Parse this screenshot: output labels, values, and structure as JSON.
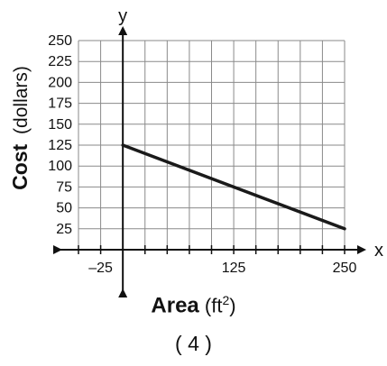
{
  "chart_data": {
    "type": "line",
    "title": "",
    "xlabel": "Area",
    "xlabel_unit": "(ft",
    "xlabel_unit_exp": "2",
    "xlabel_unit_close": ")",
    "ylabel": "Cost",
    "ylabel_unit": "(dollars)",
    "x_axis_letter": "x",
    "y_axis_letter": "y",
    "xlim": [
      -50,
      250
    ],
    "ylim": [
      0,
      250
    ],
    "x_grid_step": 25,
    "y_grid_step": 25,
    "grid": true,
    "x_ticks": [
      -25,
      125,
      250
    ],
    "x_tick_labels": [
      "–25",
      "125",
      "250"
    ],
    "y_ticks": [
      25,
      50,
      75,
      100,
      125,
      150,
      175,
      200,
      225,
      250
    ],
    "y_tick_labels": [
      "25",
      "50",
      "75",
      "100",
      "125",
      "150",
      "175",
      "200",
      "225",
      "250"
    ],
    "series": [
      {
        "x": [
          0,
          250
        ],
        "y": [
          125,
          25
        ]
      }
    ],
    "line_color": "#1a1a1a",
    "grid_color": "#8a8a8a"
  },
  "caption": "( 4 )"
}
